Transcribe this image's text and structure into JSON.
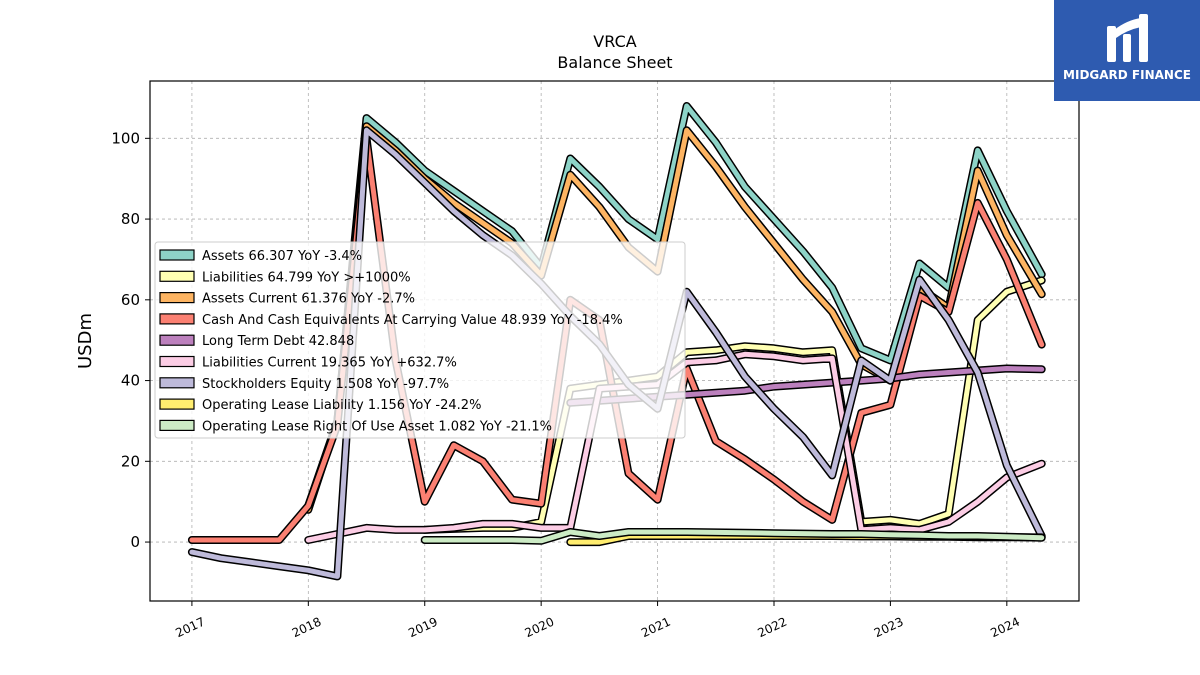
{
  "chart_data": {
    "type": "line",
    "title": "VRCA",
    "subtitle": "Balance  Sheet",
    "ylabel": "USDm",
    "xlabel": "",
    "xlim": [
      2016.64,
      2024.62
    ],
    "ylim": [
      -14.6,
      114.2
    ],
    "xticks": [
      {
        "value": 2017,
        "label": "2017"
      },
      {
        "value": 2018,
        "label": "2018"
      },
      {
        "value": 2019,
        "label": "2019"
      },
      {
        "value": 2020,
        "label": "2020"
      },
      {
        "value": 2021,
        "label": "2021"
      },
      {
        "value": 2022,
        "label": "2022"
      },
      {
        "value": 2023,
        "label": "2023"
      },
      {
        "value": 2024,
        "label": "2024"
      }
    ],
    "yticks": [
      0,
      20,
      40,
      60,
      80,
      100
    ],
    "grid": true,
    "legend_position": "center-left",
    "series": [
      {
        "name": "Assets",
        "legend": "Assets  66.307 YoY -3.4%",
        "color": "#8dd3c7",
        "points": [
          [
            2018.0,
            9
          ],
          [
            2018.25,
            30
          ],
          [
            2018.5,
            105
          ],
          [
            2018.75,
            99
          ],
          [
            2019.0,
            92
          ],
          [
            2019.25,
            87
          ],
          [
            2019.5,
            82
          ],
          [
            2019.75,
            77
          ],
          [
            2020.0,
            68
          ],
          [
            2020.25,
            95
          ],
          [
            2020.5,
            88
          ],
          [
            2020.75,
            80
          ],
          [
            2021.0,
            75
          ],
          [
            2021.25,
            108
          ],
          [
            2021.5,
            99
          ],
          [
            2021.75,
            88
          ],
          [
            2022.0,
            80
          ],
          [
            2022.25,
            72
          ],
          [
            2022.5,
            63
          ],
          [
            2022.75,
            48
          ],
          [
            2023.0,
            45
          ],
          [
            2023.25,
            69
          ],
          [
            2023.5,
            63
          ],
          [
            2023.75,
            97
          ],
          [
            2024.0,
            82
          ],
          [
            2024.3,
            66.3
          ]
        ]
      },
      {
        "name": "Liabilities",
        "legend": "Liabilities  64.799 YoY >+1000%",
        "color": "#ffffb3",
        "points": [
          [
            2019.0,
            3
          ],
          [
            2019.5,
            3.5
          ],
          [
            2019.75,
            3.5
          ],
          [
            2020.0,
            5
          ],
          [
            2020.25,
            38
          ],
          [
            2020.5,
            39
          ],
          [
            2020.75,
            40
          ],
          [
            2021.0,
            41
          ],
          [
            2021.25,
            47
          ],
          [
            2021.5,
            47.5
          ],
          [
            2021.75,
            48.5
          ],
          [
            2022.0,
            48
          ],
          [
            2022.25,
            47
          ],
          [
            2022.5,
            47.5
          ],
          [
            2022.75,
            5
          ],
          [
            2023.0,
            5.5
          ],
          [
            2023.25,
            4.5
          ],
          [
            2023.5,
            7
          ],
          [
            2023.75,
            55
          ],
          [
            2024.0,
            62
          ],
          [
            2024.3,
            64.8
          ]
        ]
      },
      {
        "name": "Assets Current",
        "legend": "Assets Current  61.376 YoY -2.7%",
        "color": "#fdb462",
        "points": [
          [
            2018.0,
            8
          ],
          [
            2018.25,
            30
          ],
          [
            2018.5,
            103
          ],
          [
            2018.75,
            97
          ],
          [
            2019.0,
            90
          ],
          [
            2019.25,
            84
          ],
          [
            2019.5,
            79
          ],
          [
            2019.75,
            74
          ],
          [
            2020.0,
            66
          ],
          [
            2020.25,
            91
          ],
          [
            2020.5,
            83
          ],
          [
            2020.75,
            73
          ],
          [
            2021.0,
            67
          ],
          [
            2021.25,
            102
          ],
          [
            2021.5,
            93
          ],
          [
            2021.75,
            83
          ],
          [
            2022.0,
            74
          ],
          [
            2022.25,
            65
          ],
          [
            2022.5,
            57
          ],
          [
            2022.75,
            44
          ],
          [
            2023.0,
            40
          ],
          [
            2023.25,
            63
          ],
          [
            2023.5,
            58
          ],
          [
            2023.75,
            92
          ],
          [
            2024.0,
            76
          ],
          [
            2024.3,
            61.4
          ]
        ]
      },
      {
        "name": "Cash And Cash Equivalents At Carrying Value",
        "legend": "Cash And Cash Equivalents At Carrying Value  48.939 YoY -18.4%",
        "color": "#fb8072",
        "points": [
          [
            2017.0,
            0.5
          ],
          [
            2017.25,
            0.5
          ],
          [
            2017.5,
            0.5
          ],
          [
            2017.75,
            0.5
          ],
          [
            2018.0,
            9
          ],
          [
            2018.25,
            29
          ],
          [
            2018.5,
            100
          ],
          [
            2018.75,
            45
          ],
          [
            2019.0,
            10
          ],
          [
            2019.25,
            24
          ],
          [
            2019.5,
            20
          ],
          [
            2019.75,
            10.5
          ],
          [
            2020.0,
            9.5
          ],
          [
            2020.25,
            60
          ],
          [
            2020.5,
            55
          ],
          [
            2020.75,
            17
          ],
          [
            2021.0,
            10.5
          ],
          [
            2021.25,
            43
          ],
          [
            2021.5,
            25
          ],
          [
            2021.75,
            20.5
          ],
          [
            2022.0,
            15.5
          ],
          [
            2022.25,
            10
          ],
          [
            2022.5,
            5.5
          ],
          [
            2022.75,
            32
          ],
          [
            2023.0,
            34
          ],
          [
            2023.25,
            61
          ],
          [
            2023.5,
            57
          ],
          [
            2023.75,
            84
          ],
          [
            2024.0,
            70
          ],
          [
            2024.3,
            48.9
          ]
        ]
      },
      {
        "name": "Long Term Debt",
        "legend": "Long Term Debt  42.848",
        "color": "#bc80bd",
        "points": [
          [
            2020.25,
            34.5
          ],
          [
            2020.5,
            35
          ],
          [
            2020.75,
            35.5
          ],
          [
            2021.0,
            36
          ],
          [
            2021.25,
            36.5
          ],
          [
            2021.5,
            37
          ],
          [
            2021.75,
            37.5
          ],
          [
            2022.0,
            38.5
          ],
          [
            2022.25,
            39
          ],
          [
            2022.5,
            39.5
          ],
          [
            2022.75,
            40
          ],
          [
            2023.0,
            40.5
          ],
          [
            2023.25,
            41.5
          ],
          [
            2023.5,
            42
          ],
          [
            2023.75,
            42.5
          ],
          [
            2024.0,
            43
          ],
          [
            2024.3,
            42.8
          ]
        ]
      },
      {
        "name": "Liabilities Current",
        "legend": "Liabilities Current  19.365 YoY +632.7%",
        "color": "#fccde5",
        "points": [
          [
            2018.0,
            0.5
          ],
          [
            2018.25,
            2
          ],
          [
            2018.5,
            3.5
          ],
          [
            2018.75,
            3
          ],
          [
            2019.0,
            3
          ],
          [
            2019.25,
            3.5
          ],
          [
            2019.5,
            4.5
          ],
          [
            2019.75,
            4.5
          ],
          [
            2020.0,
            3.5
          ],
          [
            2020.25,
            3.5
          ],
          [
            2020.5,
            38
          ],
          [
            2020.75,
            38.5
          ],
          [
            2021.0,
            39
          ],
          [
            2021.25,
            44.5
          ],
          [
            2021.5,
            45
          ],
          [
            2021.75,
            46.5
          ],
          [
            2022.0,
            46
          ],
          [
            2022.25,
            45
          ],
          [
            2022.5,
            45.5
          ],
          [
            2022.75,
            3
          ],
          [
            2023.0,
            3.5
          ],
          [
            2023.25,
            3
          ],
          [
            2023.5,
            5
          ],
          [
            2023.75,
            10
          ],
          [
            2024.0,
            16
          ],
          [
            2024.3,
            19.4
          ]
        ]
      },
      {
        "name": "Stockholders Equity",
        "legend": "Stockholders Equity  1.508 YoY -97.7%",
        "color": "#bebada",
        "points": [
          [
            2017.0,
            -2.5
          ],
          [
            2017.25,
            -4
          ],
          [
            2017.5,
            -5
          ],
          [
            2017.75,
            -6
          ],
          [
            2018.0,
            -7
          ],
          [
            2018.25,
            -8.5
          ],
          [
            2018.5,
            102
          ],
          [
            2018.75,
            96
          ],
          [
            2019.0,
            89
          ],
          [
            2019.25,
            82
          ],
          [
            2019.5,
            76
          ],
          [
            2019.75,
            71
          ],
          [
            2020.0,
            64
          ],
          [
            2020.25,
            56
          ],
          [
            2020.5,
            49
          ],
          [
            2020.75,
            39
          ],
          [
            2021.0,
            33
          ],
          [
            2021.25,
            62
          ],
          [
            2021.5,
            52
          ],
          [
            2021.75,
            41
          ],
          [
            2022.0,
            33
          ],
          [
            2022.25,
            26
          ],
          [
            2022.5,
            16.5
          ],
          [
            2022.75,
            45
          ],
          [
            2023.0,
            40
          ],
          [
            2023.25,
            65
          ],
          [
            2023.5,
            55
          ],
          [
            2023.75,
            42
          ],
          [
            2024.0,
            19
          ],
          [
            2024.3,
            1.5
          ]
        ]
      },
      {
        "name": "Operating Lease Liability",
        "legend": "Operating Lease Liability  1.156 YoY -24.2%",
        "color": "#ffed6f",
        "points": [
          [
            2020.25,
            0
          ],
          [
            2020.5,
            0
          ],
          [
            2020.75,
            1.5
          ],
          [
            2021.0,
            1.5
          ],
          [
            2021.25,
            1.5
          ],
          [
            2021.5,
            1.5
          ],
          [
            2021.75,
            1.5
          ],
          [
            2022.0,
            1.5
          ],
          [
            2022.25,
            1.5
          ],
          [
            2022.5,
            1.5
          ],
          [
            2022.75,
            1.4
          ],
          [
            2023.0,
            1.4
          ],
          [
            2023.25,
            1.3
          ],
          [
            2023.5,
            1.3
          ],
          [
            2023.75,
            1.2
          ],
          [
            2024.0,
            1.2
          ],
          [
            2024.3,
            1.16
          ]
        ]
      },
      {
        "name": "Operating Lease Right Of Use Asset",
        "legend": "Operating Lease Right Of Use Asset  1.082 YoY -21.1%",
        "color": "#ccebc5",
        "points": [
          [
            2019.0,
            0.5
          ],
          [
            2019.25,
            0.5
          ],
          [
            2019.5,
            0.5
          ],
          [
            2019.75,
            0.5
          ],
          [
            2020.0,
            0.3
          ],
          [
            2020.25,
            2.5
          ],
          [
            2020.5,
            1.5
          ],
          [
            2020.75,
            2.5
          ],
          [
            2021.0,
            2.5
          ],
          [
            2021.25,
            2.5
          ],
          [
            2021.5,
            2.4
          ],
          [
            2021.75,
            2.3
          ],
          [
            2022.0,
            2.2
          ],
          [
            2022.25,
            2.1
          ],
          [
            2022.5,
            2.0
          ],
          [
            2022.75,
            2.0
          ],
          [
            2023.0,
            1.8
          ],
          [
            2023.25,
            1.7
          ],
          [
            2023.5,
            1.5
          ],
          [
            2023.75,
            1.5
          ],
          [
            2024.0,
            1.3
          ],
          [
            2024.3,
            1.08
          ]
        ]
      }
    ]
  },
  "logo": {
    "name": "MIDGARD FINANCE"
  }
}
